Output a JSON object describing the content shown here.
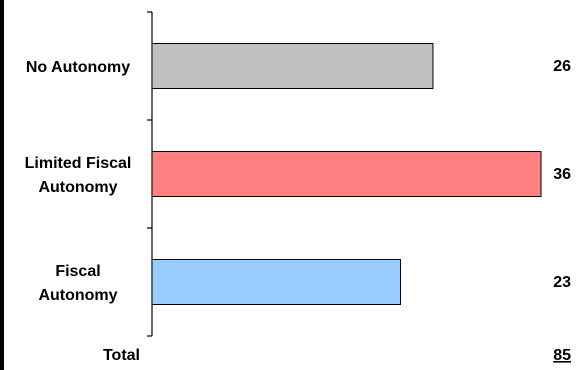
{
  "chart_data": {
    "type": "bar",
    "orientation": "horizontal",
    "categories": [
      "No Autonomy",
      "Limited Fiscal Autonomy",
      "Fiscal Autonomy"
    ],
    "category_lines": [
      [
        "No Autonomy"
      ],
      [
        "Limited Fiscal",
        "Autonomy"
      ],
      [
        "Fiscal",
        "Autonomy"
      ]
    ],
    "values": [
      26,
      36,
      23
    ],
    "bar_colors": [
      "#c0c0c0",
      "#ff8080",
      "#99ccff"
    ],
    "value_labels": [
      "26",
      "36",
      "23"
    ],
    "total": {
      "label": "Total",
      "value": "85"
    },
    "xlim": [
      0,
      36
    ],
    "grid": false,
    "title": "",
    "xlabel": "",
    "ylabel": ""
  }
}
